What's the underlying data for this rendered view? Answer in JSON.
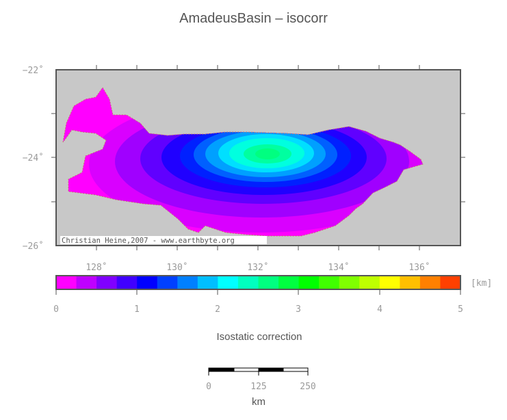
{
  "title": "AmadeusBasin – isocorr",
  "map": {
    "lon_ticks": [
      "128˚",
      "130˚",
      "132˚",
      "134˚",
      "136˚"
    ],
    "lat_ticks": [
      "−22˚",
      "−24˚",
      "−26˚"
    ],
    "credit": "Christian Heine,2007 - www.earthbyte.org",
    "background_color": "#c8c8c8"
  },
  "colorbar": {
    "unit": "[km]",
    "labels": [
      "0",
      "1",
      "2",
      "3",
      "4",
      "5"
    ],
    "colors": [
      "#ff00ff",
      "#bf00ff",
      "#8000ff",
      "#4000ff",
      "#0000ff",
      "#0040ff",
      "#0080ff",
      "#00bfff",
      "#00ffff",
      "#00ffbf",
      "#00ff80",
      "#00ff40",
      "#00ff00",
      "#40ff00",
      "#80ff00",
      "#bfff00",
      "#ffff00",
      "#ffbf00",
      "#ff8000",
      "#ff4000"
    ],
    "caption": "Isostatic correction"
  },
  "scalebar": {
    "labels": [
      "0",
      "125",
      "250"
    ],
    "unit": "km"
  }
}
